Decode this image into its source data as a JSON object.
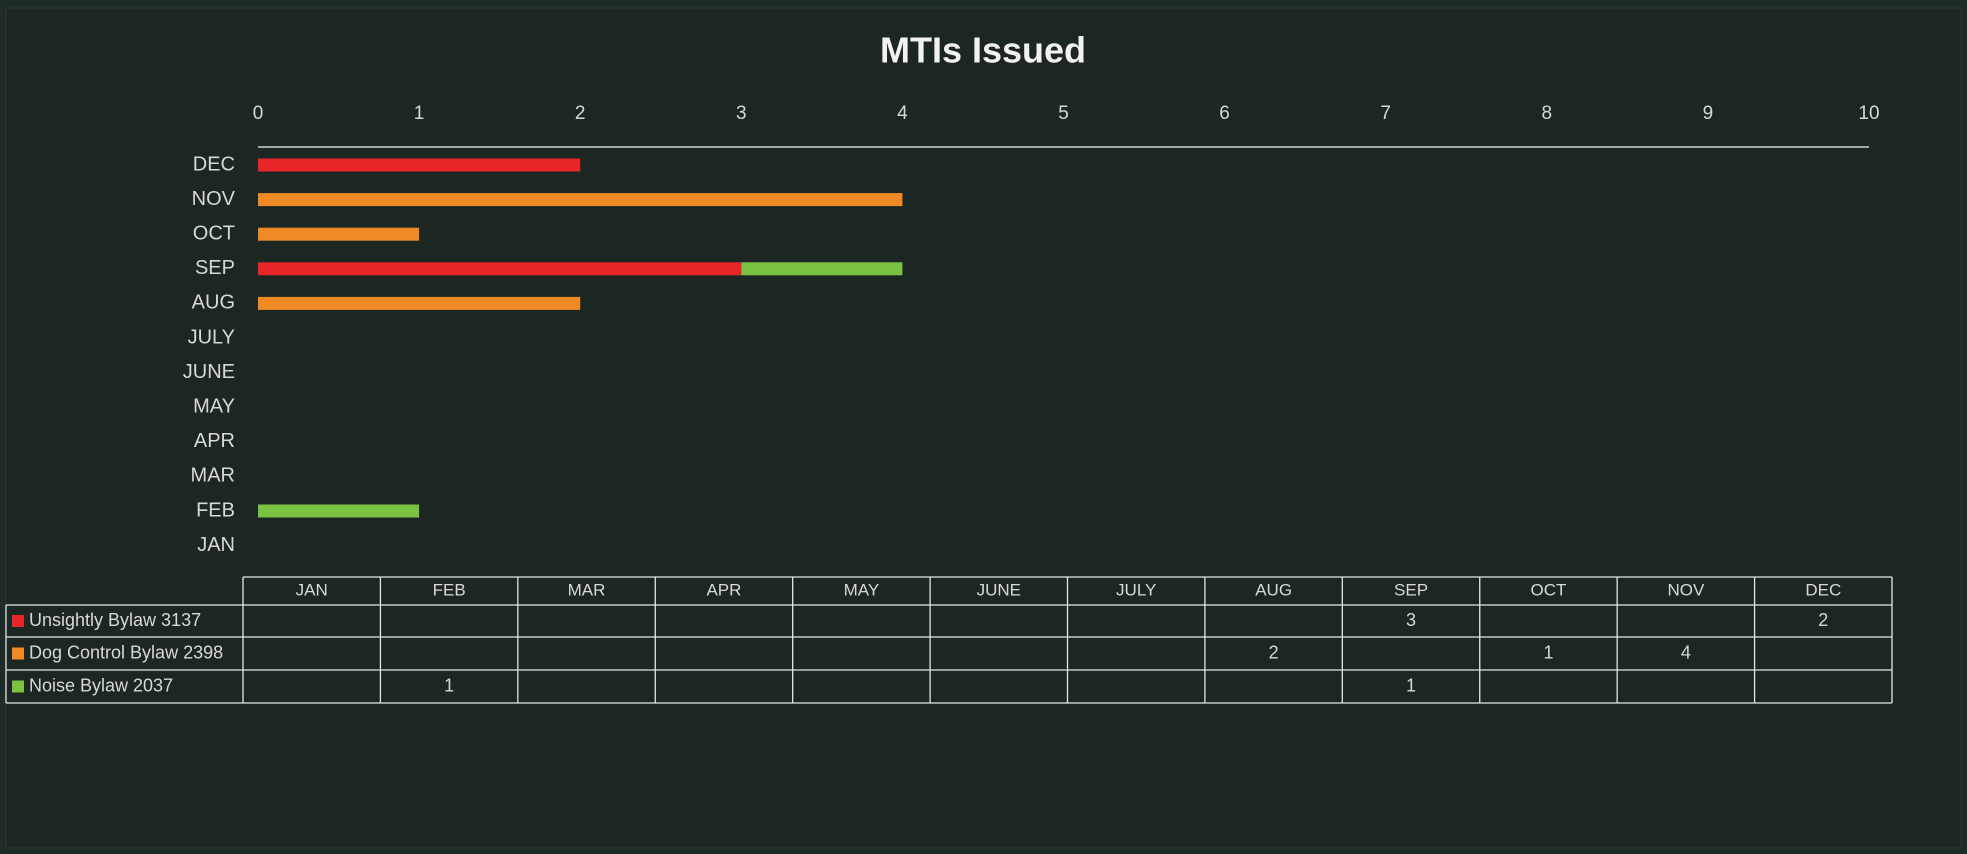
{
  "chart_data": {
    "type": "bar",
    "orientation": "horizontal",
    "stacked": true,
    "title": "MTIs Issued",
    "categories": [
      "JAN",
      "FEB",
      "MAR",
      "APR",
      "MAY",
      "JUNE",
      "JULY",
      "AUG",
      "SEP",
      "OCT",
      "NOV",
      "DEC"
    ],
    "series": [
      {
        "name": "Unsightly Bylaw 3137",
        "color": "#e8262a",
        "values": [
          null,
          null,
          null,
          null,
          null,
          null,
          null,
          null,
          3,
          null,
          null,
          2
        ]
      },
      {
        "name": "Dog Control Bylaw 2398",
        "color": "#f08a24",
        "values": [
          null,
          null,
          null,
          null,
          null,
          null,
          null,
          2,
          null,
          1,
          4,
          null
        ]
      },
      {
        "name": "Noise Bylaw 2037",
        "color": "#7cc242",
        "values": [
          null,
          1,
          null,
          null,
          null,
          null,
          null,
          null,
          1,
          null,
          null,
          null
        ]
      }
    ],
    "xlim": [
      0,
      10
    ],
    "xticks": [
      0,
      1,
      2,
      3,
      4,
      5,
      6,
      7,
      8,
      9,
      10
    ],
    "grid": false,
    "data_table": true
  }
}
